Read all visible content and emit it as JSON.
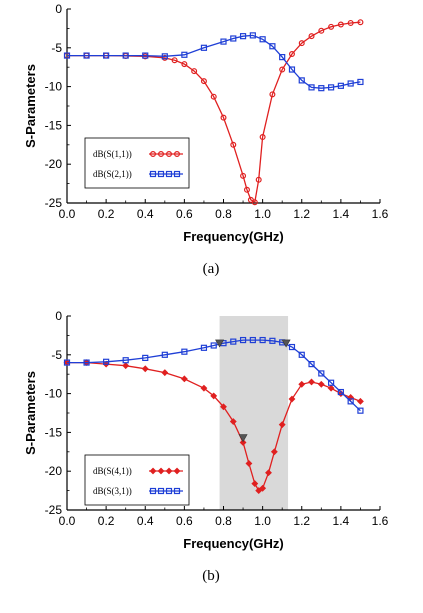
{
  "chart_data": [
    {
      "type": "line",
      "caption": "(a)",
      "xlabel": "Frequency(GHz)",
      "ylabel": "S-Parameters",
      "xlim": [
        0.0,
        1.6
      ],
      "ylim": [
        -25,
        0
      ],
      "xticks": [
        "0.0",
        "0.2",
        "0.4",
        "0.6",
        "0.8",
        "1.0",
        "1.2",
        "1.4",
        "1.6"
      ],
      "yticks": [
        "0",
        "-5",
        "-10",
        "-15",
        "-20",
        "-25"
      ],
      "legend_position": "bottom-left",
      "grid": false,
      "series": [
        {
          "name": "dB(S(1,1))",
          "color": "#e02020",
          "marker": "circle",
          "x": [
            0.0,
            0.1,
            0.2,
            0.3,
            0.4,
            0.5,
            0.55,
            0.6,
            0.65,
            0.7,
            0.75,
            0.8,
            0.85,
            0.9,
            0.92,
            0.94,
            0.96,
            0.98,
            1.0,
            1.05,
            1.1,
            1.15,
            1.2,
            1.25,
            1.3,
            1.35,
            1.4,
            1.45,
            1.5
          ],
          "y": [
            -6.0,
            -6.0,
            -6.0,
            -6.05,
            -6.1,
            -6.3,
            -6.6,
            -7.1,
            -8.0,
            -9.3,
            -11.3,
            -14.0,
            -17.5,
            -21.5,
            -23.3,
            -24.6,
            -24.9,
            -22.0,
            -16.5,
            -11.0,
            -7.8,
            -5.8,
            -4.4,
            -3.5,
            -2.8,
            -2.3,
            -2.0,
            -1.8,
            -1.7
          ]
        },
        {
          "name": "dB(S(2,1))",
          "color": "#1f3fd6",
          "marker": "square",
          "x": [
            0.0,
            0.1,
            0.2,
            0.3,
            0.4,
            0.5,
            0.6,
            0.7,
            0.8,
            0.85,
            0.9,
            0.95,
            1.0,
            1.05,
            1.1,
            1.15,
            1.2,
            1.25,
            1.3,
            1.35,
            1.4,
            1.45,
            1.5
          ],
          "y": [
            -6.0,
            -6.0,
            -6.0,
            -6.0,
            -6.0,
            -6.1,
            -5.9,
            -5.0,
            -4.2,
            -3.8,
            -3.5,
            -3.4,
            -3.9,
            -4.8,
            -6.2,
            -7.8,
            -9.2,
            -10.1,
            -10.2,
            -10.1,
            -9.9,
            -9.6,
            -9.4
          ]
        }
      ]
    },
    {
      "type": "line",
      "caption": "(b)",
      "xlabel": "Frequency(GHz)",
      "ylabel": "S-Parameters",
      "xlim": [
        0.0,
        1.6
      ],
      "ylim": [
        -25,
        0
      ],
      "xticks": [
        "0.0",
        "0.2",
        "0.4",
        "0.6",
        "0.8",
        "1.0",
        "1.2",
        "1.4",
        "1.6"
      ],
      "yticks": [
        "0",
        "-5",
        "-10",
        "-15",
        "-20",
        "-25"
      ],
      "legend_position": "bottom-left",
      "grid": false,
      "shaded_band": {
        "x_from": 0.78,
        "x_to": 1.13,
        "color": "#d9d9d9"
      },
      "markers": [
        {
          "x": 0.78,
          "y": -3.6
        },
        {
          "x": 0.9,
          "y": -15.8
        },
        {
          "x": 1.12,
          "y": -3.6
        }
      ],
      "series": [
        {
          "name": "dB(S(4,1))",
          "color": "#e02020",
          "marker": "diamond",
          "x": [
            0.0,
            0.1,
            0.2,
            0.3,
            0.4,
            0.5,
            0.6,
            0.7,
            0.75,
            0.8,
            0.85,
            0.9,
            0.93,
            0.96,
            0.98,
            1.0,
            1.03,
            1.06,
            1.1,
            1.15,
            1.2,
            1.25,
            1.3,
            1.35,
            1.4,
            1.45,
            1.5
          ],
          "y": [
            -6.0,
            -6.0,
            -6.2,
            -6.4,
            -6.8,
            -7.3,
            -8.1,
            -9.3,
            -10.3,
            -11.7,
            -13.6,
            -16.3,
            -19.0,
            -21.6,
            -22.5,
            -22.2,
            -20.2,
            -17.5,
            -14.0,
            -10.7,
            -8.8,
            -8.5,
            -8.8,
            -9.3,
            -10.0,
            -10.5,
            -11.0
          ]
        },
        {
          "name": "dB(S(3,1))",
          "color": "#1f3fd6",
          "marker": "square",
          "x": [
            0.0,
            0.1,
            0.2,
            0.3,
            0.4,
            0.5,
            0.6,
            0.7,
            0.75,
            0.8,
            0.85,
            0.9,
            0.95,
            1.0,
            1.05,
            1.1,
            1.15,
            1.2,
            1.25,
            1.3,
            1.35,
            1.4,
            1.45,
            1.5
          ],
          "y": [
            -6.0,
            -6.0,
            -5.9,
            -5.7,
            -5.4,
            -5.0,
            -4.6,
            -4.1,
            -3.8,
            -3.5,
            -3.3,
            -3.1,
            -3.1,
            -3.1,
            -3.2,
            -3.4,
            -4.0,
            -5.0,
            -6.2,
            -7.4,
            -8.6,
            -9.8,
            -11.0,
            -12.2
          ]
        }
      ]
    }
  ]
}
